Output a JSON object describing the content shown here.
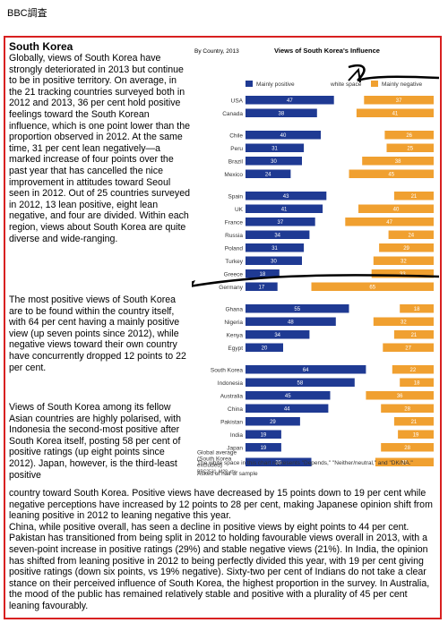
{
  "header": "BBC調査",
  "article": {
    "title": "South Korea",
    "p1": "Globally, views of South Korea have strongly deteriorated in 2013 but continue to be in positive territory. On average, in the 21 tracking countries surveyed both in 2012 and 2013, 36 per cent hold positive feelings toward the South Korean influence, which is one point lower than the proportion observed in 2012. At the same time, 31 per cent lean negatively—a marked increase of four points over the past year that has cancelled the nice improvement in attitudes toward Seoul seen in 2012. Out of 25 countries surveyed in 2012, 13 lean positive, eight lean negative, and four are divided. Within each region, views about South Korea are quite diverse and wide-ranging.",
    "p2": "The most positive views of South Korea are to be found within the country itself, with 64 per cent having a mainly positive view (up seven points since 2012), while negative views toward their own country have concurrently dropped 12 points to 22 per cent.",
    "p3": "Views of South Korea among its fellow Asian countries are highly polarised, with Indonesia the second-most positive after South Korea itself, posting 58 per cent of positive ratings (up eight points since 2012). Japan, however, is the third-least positive",
    "p4": "country toward South Korea. Positive views have decreased by 15 points down to 19 per cent while negative perceptions have increased by 12 points to 28 per cent, making Japanese opinion shift from leaning positive in 2012 to leaning negative this year.\n China, while positive overall, has seen a decline in positive views by eight points to 44 per cent. Pakistan has transitioned from being split in 2012 to holding favourable views overall in 2013, with a seven-point increase in positive ratings (29%) and stable negative views (21%). In India, the opinion has shifted from leaning positive in 2012 to being perfectly divided this year, with 19 per cent giving positive ratings (down six points, vs 19% negative). Sixty-two per cent of Indians do not take a clear stance on their perceived influence of South Korea, the highest proportion in the survey. In Australia, the mood of the public has remained relatively stable and positive with a plurality of 45 per cent leaning favourably."
  },
  "colors": {
    "positive": "#1f3a93",
    "negative": "#f0a030",
    "frame": "#d82020"
  },
  "chart_data": {
    "type": "bar",
    "title": "Views of South Korea's Influence",
    "subtitle": "By Country, 2013",
    "legend": [
      "Mainly positive",
      "white space",
      "Mainly negative"
    ],
    "categories": [
      "USA",
      "Canada",
      "Chile",
      "Peru",
      "Brazil",
      "Mexico",
      "Spain",
      "UK",
      "France",
      "Russia",
      "Poland",
      "Turkey",
      "Greece",
      "Germany",
      "Ghana",
      "Nigeria",
      "Kenya",
      "Egypt",
      "South Korea",
      "Indonesia",
      "Australia",
      "China",
      "Pakistan",
      "India",
      "Japan",
      "Global average (South Korea excluded)"
    ],
    "groups": [
      [
        0,
        1
      ],
      [
        2,
        3,
        4,
        5
      ],
      [
        6,
        7,
        8,
        9,
        10,
        11,
        12,
        13
      ],
      [
        14,
        15,
        16,
        17
      ],
      [
        18,
        19,
        20,
        21,
        22,
        23,
        24,
        25
      ]
    ],
    "series": [
      {
        "name": "Mainly positive",
        "values": [
          47,
          38,
          40,
          31,
          30,
          24,
          43,
          41,
          37,
          34,
          31,
          30,
          18,
          17,
          55,
          48,
          34,
          20,
          64,
          58,
          45,
          44,
          29,
          19,
          19,
          35
        ]
      },
      {
        "name": "Mainly negative",
        "values": [
          37,
          41,
          26,
          25,
          38,
          45,
          21,
          40,
          47,
          24,
          29,
          32,
          33,
          65,
          18,
          32,
          21,
          27,
          22,
          18,
          36,
          28,
          21,
          19,
          28,
          31
        ]
      }
    ],
    "xlim": [
      0,
      100
    ],
    "code": "BBC2531_M28_cty",
    "footnote": "The white space in this chart represents \"Depends,\" \"Neither/neutral,\" and \"DK/NA.\"",
    "footnote2": "Asked of half of sample"
  }
}
